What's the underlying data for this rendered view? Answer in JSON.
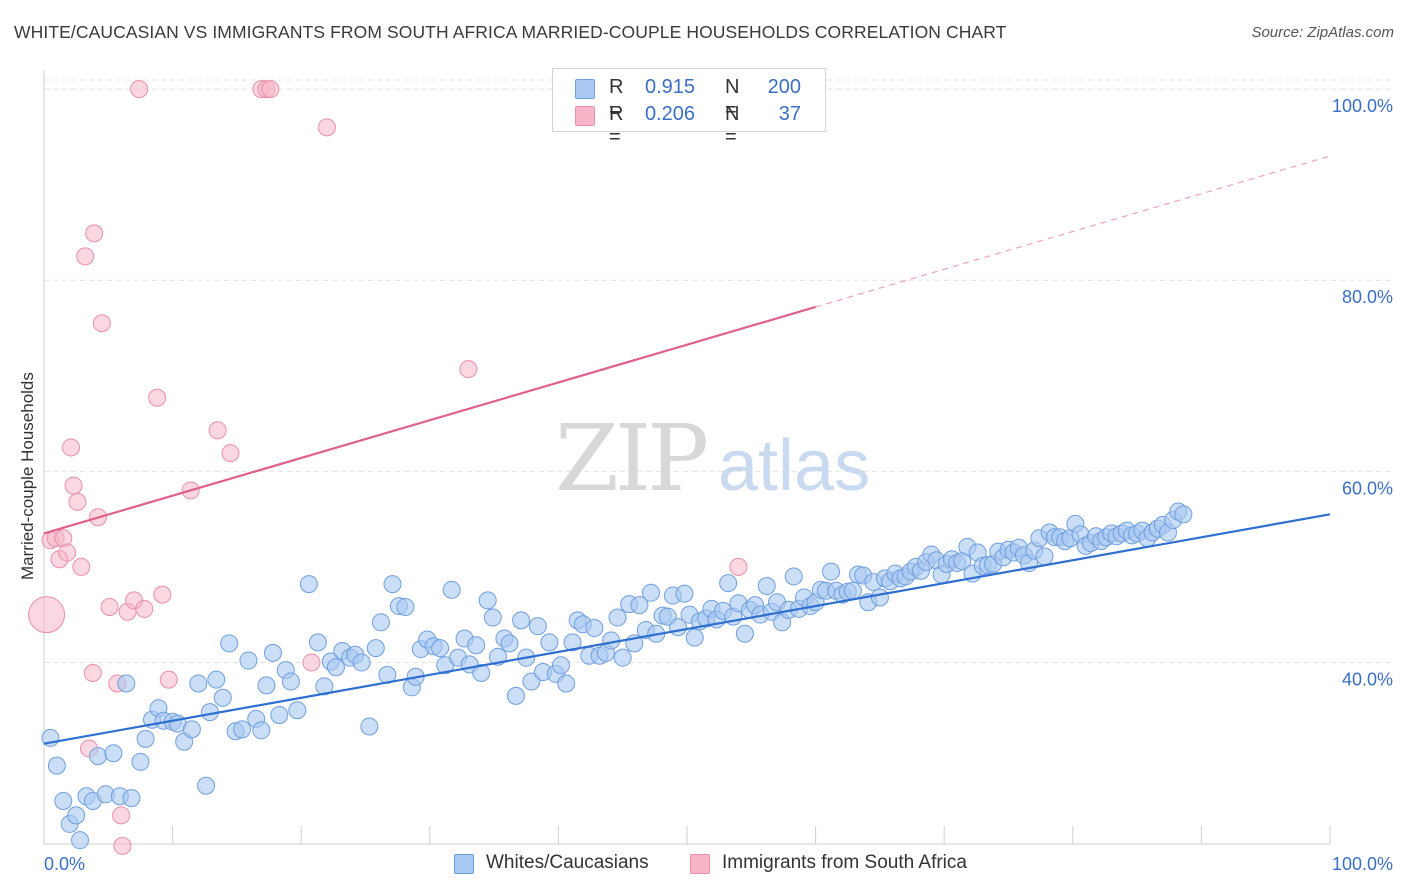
{
  "header": {
    "title": "WHITE/CAUCASIAN VS IMMIGRANTS FROM SOUTH AFRICA MARRIED-COUPLE HOUSEHOLDS CORRELATION CHART",
    "source": "Source: ZipAtlas.com"
  },
  "watermark": {
    "zip": "ZIP",
    "atlas": "atlas"
  },
  "legend": {
    "r_label": "R =",
    "n_label": "N =",
    "rows": [
      {
        "r": "0.915",
        "n": "200",
        "color": "#a9c8f2"
      },
      {
        "r": "0.206",
        "n": "37",
        "color": "#f6b6c8"
      }
    ]
  },
  "bottom_legend": {
    "series1": "Whites/Caucasians",
    "series2": "Immigrants from South Africa"
  },
  "chart_data": {
    "type": "scatter",
    "ylabel": "Married-couple Households",
    "xlabel": "",
    "x_tick_labels": [
      "0.0%",
      "100.0%"
    ],
    "y_tick_labels": [
      "40.0%",
      "60.0%",
      "80.0%",
      "100.0%"
    ],
    "y_ticks": [
      40,
      60,
      80,
      100
    ],
    "xlim": [
      0,
      100
    ],
    "ylim": [
      21,
      102
    ],
    "grid": true,
    "colors": {
      "blue_fill": "#a9c8f2",
      "blue_stroke": "#6f9fe0",
      "blue_line": "#2f6fd0",
      "pink_fill": "#f6b6c8",
      "pink_stroke": "#eb8eaa",
      "pink_line": "#e0608a",
      "axis_label": "#3a6fc4"
    },
    "series": [
      {
        "name": "Whites/Caucasians",
        "trend": {
          "x0": 0,
          "y0": 31.5,
          "x1": 100,
          "y1": 55.5
        },
        "points": [
          [
            0.5,
            32.1
          ],
          [
            1.0,
            29.2
          ],
          [
            1.5,
            25.5
          ],
          [
            2.0,
            23.1
          ],
          [
            2.5,
            24.0
          ],
          [
            2.8,
            21.4
          ],
          [
            3.3,
            26.0
          ],
          [
            3.8,
            25.5
          ],
          [
            4.2,
            30.2
          ],
          [
            4.8,
            26.2
          ],
          [
            5.4,
            30.5
          ],
          [
            5.9,
            26.0
          ],
          [
            6.4,
            37.8
          ],
          [
            6.8,
            25.8
          ],
          [
            7.5,
            29.6
          ],
          [
            7.9,
            32.0
          ],
          [
            8.4,
            34.0
          ],
          [
            8.9,
            35.2
          ],
          [
            9.3,
            33.9
          ],
          [
            10.0,
            33.8
          ],
          [
            10.4,
            33.6
          ],
          [
            10.9,
            31.7
          ],
          [
            11.5,
            33.0
          ],
          [
            12.0,
            37.8
          ],
          [
            12.6,
            27.1
          ],
          [
            12.9,
            34.8
          ],
          [
            13.4,
            38.2
          ],
          [
            13.9,
            36.3
          ],
          [
            14.4,
            42.0
          ],
          [
            14.9,
            32.8
          ],
          [
            15.4,
            33.0
          ],
          [
            15.9,
            40.2
          ],
          [
            16.5,
            34.1
          ],
          [
            16.9,
            32.9
          ],
          [
            17.3,
            37.6
          ],
          [
            17.8,
            41.0
          ],
          [
            18.3,
            34.5
          ],
          [
            18.8,
            39.2
          ],
          [
            19.2,
            38.0
          ],
          [
            19.7,
            35.0
          ],
          [
            20.6,
            48.2
          ],
          [
            21.3,
            42.1
          ],
          [
            21.8,
            37.5
          ],
          [
            22.3,
            40.1
          ],
          [
            22.7,
            39.5
          ],
          [
            23.2,
            41.2
          ],
          [
            23.8,
            40.5
          ],
          [
            24.2,
            40.8
          ],
          [
            24.7,
            40.0
          ],
          [
            25.3,
            33.3
          ],
          [
            25.8,
            41.5
          ],
          [
            26.2,
            44.2
          ],
          [
            26.7,
            38.7
          ],
          [
            27.1,
            48.2
          ],
          [
            27.6,
            45.9
          ],
          [
            28.1,
            45.8
          ],
          [
            28.6,
            37.4
          ],
          [
            28.9,
            38.5
          ],
          [
            29.3,
            41.4
          ],
          [
            29.8,
            42.4
          ],
          [
            30.3,
            41.7
          ],
          [
            30.8,
            41.5
          ],
          [
            31.2,
            39.7
          ],
          [
            31.7,
            47.6
          ],
          [
            32.2,
            40.5
          ],
          [
            32.7,
            42.5
          ],
          [
            33.1,
            39.8
          ],
          [
            33.6,
            41.8
          ],
          [
            34.0,
            38.9
          ],
          [
            34.5,
            46.5
          ],
          [
            34.9,
            44.7
          ],
          [
            35.3,
            40.6
          ],
          [
            35.8,
            42.5
          ],
          [
            36.2,
            42.0
          ],
          [
            36.7,
            36.5
          ],
          [
            37.1,
            44.4
          ],
          [
            37.5,
            40.5
          ],
          [
            37.9,
            38.0
          ],
          [
            38.4,
            43.8
          ],
          [
            38.8,
            39.0
          ],
          [
            39.3,
            42.1
          ],
          [
            39.8,
            38.8
          ],
          [
            40.2,
            39.7
          ],
          [
            40.6,
            37.8
          ],
          [
            41.1,
            42.1
          ],
          [
            41.5,
            44.4
          ],
          [
            41.9,
            44.0
          ],
          [
            42.4,
            40.7
          ],
          [
            42.8,
            43.6
          ],
          [
            43.2,
            40.7
          ],
          [
            43.7,
            41.0
          ],
          [
            44.1,
            42.3
          ],
          [
            44.6,
            44.7
          ],
          [
            45.0,
            40.5
          ],
          [
            45.5,
            46.1
          ],
          [
            45.9,
            42.0
          ],
          [
            46.3,
            46.0
          ],
          [
            46.8,
            43.4
          ],
          [
            47.2,
            47.3
          ],
          [
            47.6,
            43.0
          ],
          [
            48.1,
            44.9
          ],
          [
            48.5,
            44.8
          ],
          [
            48.9,
            47.0
          ],
          [
            49.3,
            43.7
          ],
          [
            49.8,
            47.2
          ],
          [
            50.2,
            45.0
          ],
          [
            50.6,
            42.6
          ],
          [
            51.0,
            44.3
          ],
          [
            51.5,
            44.6
          ],
          [
            51.9,
            45.6
          ],
          [
            52.3,
            44.5
          ],
          [
            52.8,
            45.4
          ],
          [
            53.2,
            48.3
          ],
          [
            53.6,
            44.8
          ],
          [
            54.0,
            46.2
          ],
          [
            54.5,
            43.0
          ],
          [
            54.9,
            45.5
          ],
          [
            55.3,
            46.0
          ],
          [
            55.7,
            45.0
          ],
          [
            56.2,
            48.0
          ],
          [
            56.6,
            45.3
          ],
          [
            57.0,
            46.3
          ],
          [
            57.4,
            44.2
          ],
          [
            57.9,
            45.5
          ],
          [
            58.3,
            49.0
          ],
          [
            58.7,
            45.6
          ],
          [
            59.1,
            46.8
          ],
          [
            59.6,
            45.9
          ],
          [
            60.0,
            46.3
          ],
          [
            60.4,
            47.6
          ],
          [
            60.8,
            47.5
          ],
          [
            61.2,
            49.5
          ],
          [
            61.6,
            47.5
          ],
          [
            62.1,
            47.1
          ],
          [
            62.5,
            47.4
          ],
          [
            62.9,
            47.5
          ],
          [
            63.3,
            49.2
          ],
          [
            63.7,
            49.1
          ],
          [
            64.1,
            46.3
          ],
          [
            64.5,
            48.4
          ],
          [
            65.0,
            46.8
          ],
          [
            65.4,
            48.8
          ],
          [
            65.8,
            48.5
          ],
          [
            66.2,
            49.3
          ],
          [
            66.6,
            48.8
          ],
          [
            67.0,
            49.0
          ],
          [
            67.4,
            49.5
          ],
          [
            67.8,
            50.0
          ],
          [
            68.2,
            49.6
          ],
          [
            68.6,
            50.5
          ],
          [
            69.0,
            51.3
          ],
          [
            69.4,
            50.7
          ],
          [
            69.8,
            49.2
          ],
          [
            70.2,
            50.3
          ],
          [
            70.6,
            50.8
          ],
          [
            71.0,
            50.4
          ],
          [
            71.4,
            50.6
          ],
          [
            71.8,
            52.1
          ],
          [
            72.2,
            49.3
          ],
          [
            72.6,
            51.5
          ],
          [
            73.0,
            50.1
          ],
          [
            73.4,
            50.2
          ],
          [
            73.8,
            50.3
          ],
          [
            74.2,
            51.6
          ],
          [
            74.6,
            51.0
          ],
          [
            75.0,
            51.8
          ],
          [
            75.4,
            51.5
          ],
          [
            75.8,
            52.0
          ],
          [
            76.2,
            51.2
          ],
          [
            76.6,
            50.4
          ],
          [
            77.0,
            51.7
          ],
          [
            77.4,
            53.0
          ],
          [
            77.8,
            51.1
          ],
          [
            78.2,
            53.6
          ],
          [
            78.6,
            53.1
          ],
          [
            79.0,
            53.1
          ],
          [
            79.4,
            52.7
          ],
          [
            79.8,
            53.0
          ],
          [
            80.2,
            54.5
          ],
          [
            80.6,
            53.4
          ],
          [
            81.0,
            52.2
          ],
          [
            81.4,
            52.5
          ],
          [
            81.8,
            53.2
          ],
          [
            82.2,
            52.7
          ],
          [
            82.6,
            53.1
          ],
          [
            83.0,
            53.5
          ],
          [
            83.4,
            53.2
          ],
          [
            83.8,
            53.5
          ],
          [
            84.2,
            53.8
          ],
          [
            84.6,
            53.3
          ],
          [
            85.0,
            53.5
          ],
          [
            85.4,
            53.8
          ],
          [
            85.8,
            53.0
          ],
          [
            86.2,
            53.6
          ],
          [
            86.6,
            54.0
          ],
          [
            87.0,
            54.4
          ],
          [
            87.4,
            53.6
          ],
          [
            87.8,
            54.9
          ],
          [
            88.2,
            55.8
          ],
          [
            88.6,
            55.5
          ]
        ]
      },
      {
        "name": "Immigrants from South Africa",
        "trend": {
          "x0": 0,
          "y0": 53.5,
          "x1": 60,
          "y1": 77.2,
          "dash_to_x": 100,
          "dash_to_y": 93.0
        },
        "points": [
          [
            0.2,
            45.0
          ],
          [
            0.5,
            52.8
          ],
          [
            0.9,
            53.0
          ],
          [
            1.2,
            50.8
          ],
          [
            1.5,
            53.0
          ],
          [
            1.8,
            51.5
          ],
          [
            2.1,
            62.5
          ],
          [
            2.3,
            58.5
          ],
          [
            2.6,
            56.8
          ],
          [
            2.9,
            50.0
          ],
          [
            3.2,
            82.5
          ],
          [
            3.5,
            31.0
          ],
          [
            3.8,
            38.9
          ],
          [
            3.9,
            84.9
          ],
          [
            4.2,
            55.2
          ],
          [
            4.5,
            75.5
          ],
          [
            5.1,
            45.8
          ],
          [
            5.7,
            37.8
          ],
          [
            6.0,
            24.0
          ],
          [
            6.1,
            20.8
          ],
          [
            6.5,
            45.3
          ],
          [
            7.0,
            46.5
          ],
          [
            7.4,
            100.0
          ],
          [
            7.8,
            45.6
          ],
          [
            8.8,
            67.7
          ],
          [
            9.2,
            47.1
          ],
          [
            9.7,
            38.2
          ],
          [
            11.4,
            58.0
          ],
          [
            13.5,
            64.3
          ],
          [
            14.5,
            61.9
          ],
          [
            16.9,
            100.0
          ],
          [
            17.3,
            100.0
          ],
          [
            17.6,
            100.0
          ],
          [
            20.8,
            40.0
          ],
          [
            22.0,
            96.0
          ],
          [
            33.0,
            70.7
          ],
          [
            54.0,
            50.0
          ]
        ]
      }
    ]
  }
}
